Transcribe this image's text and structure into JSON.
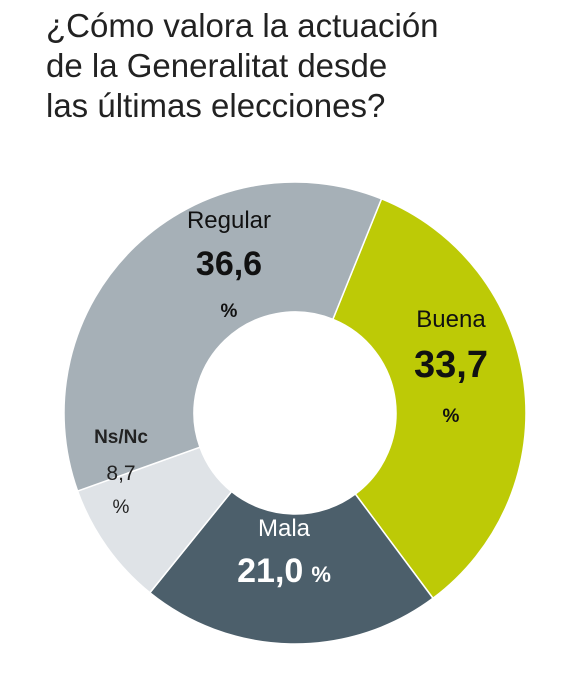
{
  "title_lines": [
    "¿Cómo valora la actuación",
    "de la Generalitat desde",
    "las últimas elecciones?"
  ],
  "chart_data": {
    "type": "pie",
    "title": "¿Cómo valora la actuación de la Generalitat desde las últimas elecciones?",
    "donut": true,
    "unit": "%",
    "categories": [
      "Buena",
      "Mala",
      "Ns/Nc",
      "Regular"
    ],
    "values": [
      33.7,
      21.0,
      8.7,
      36.6
    ],
    "value_labels": [
      "33,7",
      "21,0",
      "8,7",
      "36,6"
    ],
    "colors": [
      "#bdca06",
      "#4c5f6b",
      "#dfe3e7",
      "#a6b0b7"
    ]
  }
}
